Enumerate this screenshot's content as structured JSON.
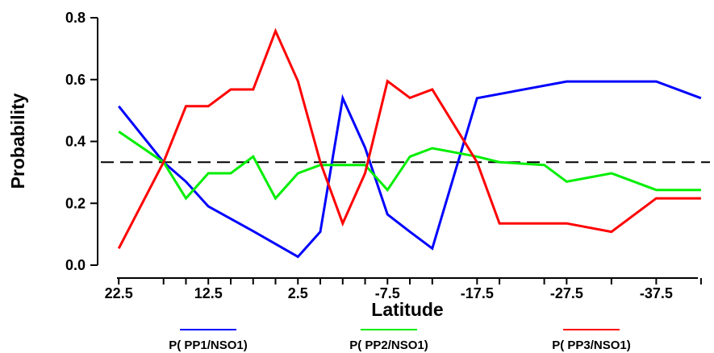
{
  "chart_data": {
    "type": "line",
    "xlabel": "Latitude",
    "ylabel": "Probability",
    "x": [
      22.5,
      17.5,
      15,
      12.5,
      10,
      7.5,
      5,
      2.5,
      0,
      -2.5,
      -5,
      -7.5,
      -10,
      -12.5,
      -17.5,
      -20,
      -25,
      -27.5,
      -32.5,
      -37.5,
      -42.5
    ],
    "xticks": [
      22.5,
      12.5,
      2.5,
      -7.5,
      -17.5,
      -27.5,
      -37.5
    ],
    "xtick_labels": [
      "22.5",
      "12.5",
      "2.5",
      "-7.5",
      "-17.5",
      "-27.5",
      "-37.5"
    ],
    "xlim": [
      24.5,
      -43.5
    ],
    "ylim": [
      0.0,
      0.8
    ],
    "yticks": [
      0.0,
      0.2,
      0.4,
      0.6,
      0.8
    ],
    "ytick_labels": [
      "0.0",
      "0.2",
      "0.4",
      "0.6",
      "0.8"
    ],
    "reference_line": {
      "y": 0.333,
      "style": "dashed",
      "color": "#000000"
    },
    "series": [
      {
        "name": "P( PP1/NSO1)",
        "color": "#0000ff",
        "x": [
          22.5,
          17.5,
          15,
          12.5,
          7.5,
          2.5,
          0,
          -2.5,
          -5,
          -7.5,
          -10,
          -12.5,
          -17.5,
          -27.5,
          -32.5,
          -37.5,
          -42.5
        ],
        "values": [
          0.514,
          0.333,
          0.27,
          0.19,
          0.11,
          0.027,
          0.108,
          0.54,
          0.38,
          0.164,
          0.108,
          0.054,
          0.54,
          0.594,
          0.594,
          0.594,
          0.54
        ]
      },
      {
        "name": "P( PP2/NSO1)",
        "color": "#00ee00",
        "x": [
          22.5,
          17.5,
          15,
          12.5,
          10,
          7.5,
          5,
          2.5,
          0,
          -2.5,
          -5,
          -7.5,
          -10,
          -12.5,
          -17.5,
          -20,
          -25,
          -27.5,
          -32.5,
          -37.5,
          -42.5
        ],
        "values": [
          0.432,
          0.333,
          0.216,
          0.297,
          0.297,
          0.351,
          0.216,
          0.297,
          0.324,
          0.324,
          0.324,
          0.243,
          0.351,
          0.378,
          0.351,
          0.333,
          0.324,
          0.27,
          0.297,
          0.243,
          0.243
        ]
      },
      {
        "name": "P( PP3/NSO1)",
        "color": "#ff0000",
        "x": [
          22.5,
          17.5,
          15,
          12.5,
          10,
          7.5,
          5,
          2.5,
          0,
          -2.5,
          -5,
          -7.5,
          -10,
          -12.5,
          -17.5,
          -20,
          -25,
          -27.5,
          -32.5,
          -37.5,
          -42.5
        ],
        "values": [
          0.054,
          0.333,
          0.514,
          0.514,
          0.568,
          0.568,
          0.757,
          0.595,
          0.333,
          0.135,
          0.297,
          0.595,
          0.541,
          0.568,
          0.333,
          0.135,
          0.135,
          0.135,
          0.108,
          0.216,
          0.216
        ]
      }
    ],
    "legend_position": "bottom"
  }
}
